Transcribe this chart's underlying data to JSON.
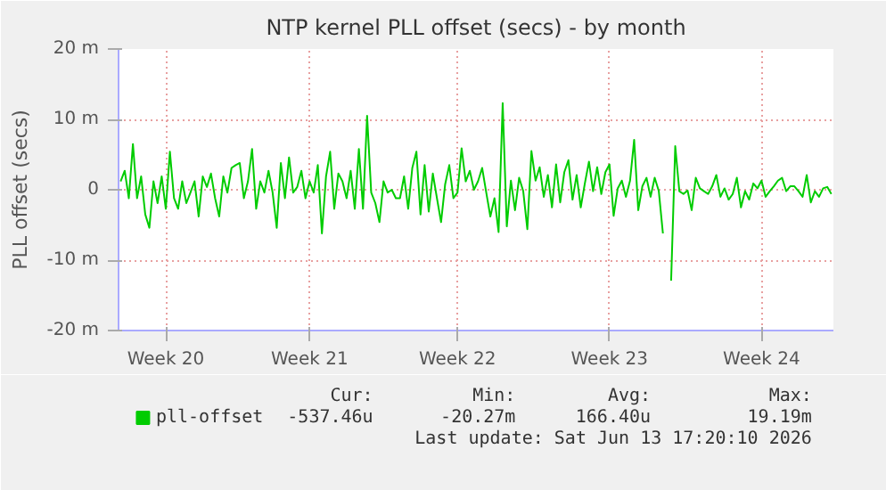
{
  "chart_data": {
    "type": "line",
    "title": "NTP kernel PLL offset (secs) - by month",
    "ylabel": "PLL offset (secs)",
    "categories": [
      null,
      null,
      null,
      null,
      null,
      null,
      null,
      null,
      null,
      null,
      null,
      "Week 20",
      null,
      null,
      null,
      null,
      null,
      null,
      null,
      null,
      null,
      null,
      null,
      null,
      null,
      null,
      null,
      null,
      null,
      null,
      null,
      null,
      null,
      null,
      null,
      null,
      null,
      null,
      null,
      null,
      null,
      null,
      null,
      null,
      null,
      null,
      "Week 21",
      null,
      null,
      null,
      null,
      null,
      null,
      null,
      null,
      null,
      null,
      null,
      null,
      null,
      null,
      null,
      null,
      null,
      null,
      null,
      null,
      null,
      null,
      null,
      null,
      null,
      null,
      null,
      null,
      null,
      null,
      null,
      null,
      null,
      null,
      null,
      "Week 22",
      null,
      null,
      null,
      null,
      null,
      null,
      null,
      null,
      null,
      null,
      null,
      null,
      null,
      null,
      null,
      null,
      null,
      null,
      null,
      null,
      null,
      null,
      null,
      null,
      null,
      null,
      null,
      null,
      null,
      null,
      null,
      null,
      null,
      null,
      null,
      null,
      "Week 23",
      null,
      null,
      null,
      null,
      null,
      null,
      null,
      null,
      null,
      null,
      null,
      null,
      null,
      null,
      null,
      null,
      null,
      null,
      null,
      null,
      null,
      null,
      null,
      null,
      null,
      null,
      null,
      null,
      null,
      null,
      null,
      null,
      null,
      null,
      null,
      null,
      "Week 24",
      null,
      null,
      null,
      null,
      null,
      null,
      null,
      null,
      null,
      null,
      null,
      null,
      null,
      null,
      null,
      null,
      null
    ],
    "series": [
      {
        "name": "pll-offset",
        "color": "#00cc00",
        "values": [
          1.2,
          2.7,
          -1.2,
          6.5,
          -1.2,
          1.9,
          -3.5,
          -5.4,
          1.2,
          -1.9,
          1.9,
          -2.7,
          5.4,
          -1.2,
          -2.7,
          1.2,
          -1.9,
          -0.4,
          1.2,
          -3.8,
          1.9,
          0.4,
          2.3,
          -1.2,
          -3.8,
          1.9,
          -0.4,
          3.1,
          3.5,
          3.8,
          -1.2,
          1.2,
          5.8,
          -2.7,
          1.2,
          -0.4,
          2.7,
          -0.4,
          -5.4,
          3.8,
          -1.2,
          4.6,
          -0.4,
          0.4,
          2.7,
          -1.2,
          1.2,
          -0.4,
          3.5,
          -6.2,
          1.9,
          5.4,
          -2.7,
          2.3,
          1.2,
          -1.2,
          2.7,
          -2.7,
          5.8,
          -2.7,
          10.5,
          -0.4,
          -1.9,
          -4.6,
          1.2,
          -0.4,
          0.0,
          -1.2,
          -1.2,
          1.9,
          -2.7,
          3.1,
          5.4,
          -3.5,
          3.5,
          -3.1,
          2.3,
          -1.2,
          -4.6,
          0.8,
          3.5,
          -1.2,
          -0.4,
          5.9,
          1.2,
          2.7,
          0.0,
          1.2,
          3.1,
          -0.4,
          -3.8,
          -1.2,
          -6.0,
          12.3,
          -5.2,
          1.3,
          -2.9,
          1.7,
          -0.2,
          -5.6,
          5.5,
          1.3,
          3.2,
          -1.0,
          2.1,
          -2.5,
          3.6,
          -1.8,
          2.5,
          4.2,
          -1.4,
          2.1,
          -2.5,
          0.9,
          4.0,
          -0.2,
          3.2,
          -0.6,
          2.5,
          3.6,
          -3.7,
          0.2,
          1.3,
          -1.0,
          1.3,
          7.1,
          -2.9,
          0.5,
          1.7,
          -1.0,
          1.7,
          -0.2,
          -6.2,
          null,
          -12.9,
          6.2,
          -0.2,
          -0.6,
          -0.1,
          -2.9,
          1.7,
          0.2,
          -0.2,
          -0.6,
          0.5,
          2.1,
          -1.0,
          0.2,
          -1.4,
          -0.6,
          1.7,
          -2.5,
          -0.2,
          -1.4,
          0.9,
          0.2,
          1.3,
          -1.0,
          -0.2,
          0.5,
          1.3,
          1.7,
          -0.2,
          0.5,
          0.5,
          -0.2,
          -1.0,
          2.1,
          -1.8,
          -0.2,
          -1.0,
          0.2,
          0.4,
          -0.6
        ]
      }
    ],
    "ylim": [
      -20,
      20
    ],
    "yticks": [
      {
        "value": -20,
        "label": "-20 m"
      },
      {
        "value": -10,
        "label": "-10 m"
      },
      0,
      {
        "value": 10,
        "label": "10 m"
      },
      {
        "value": 20,
        "label": "20 m"
      }
    ],
    "grid": true,
    "legend": "bottom",
    "marker": "none",
    "line_style": "solid",
    "annotations": [
      "Cur:",
      "Min:",
      "Avg:",
      "Max:",
      "-537.46u",
      "-20.27m",
      "166.40u",
      "19.19m",
      "Last update: Sat Jun 13 17:20:10 2026"
    ]
  }
}
